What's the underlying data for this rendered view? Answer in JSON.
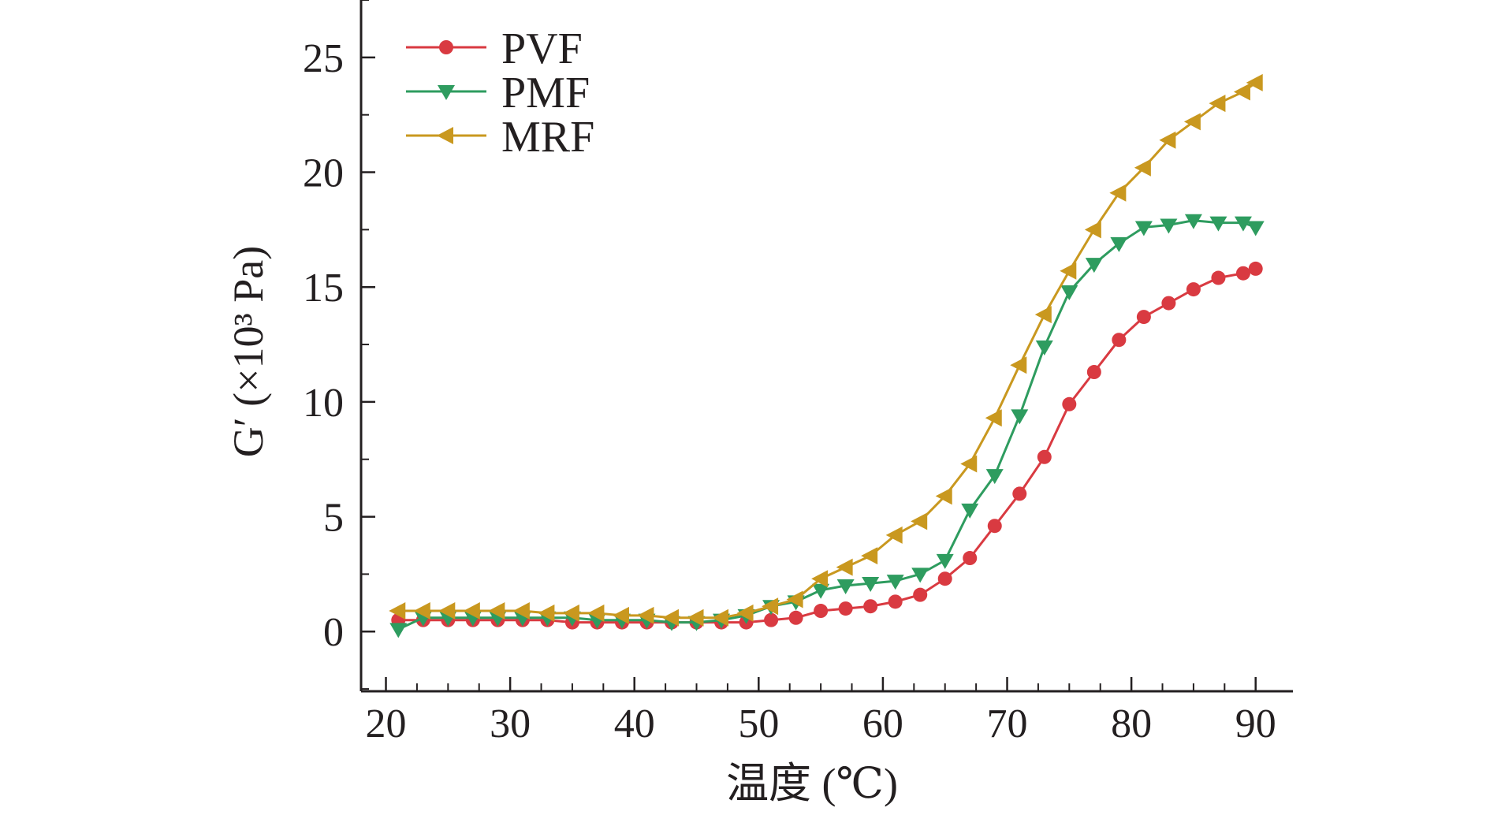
{
  "chart_data": {
    "type": "line",
    "title": "",
    "xlabel": "温度 (℃)",
    "ylabel": "G′ (×10³ Pa)",
    "xlim": [
      18,
      93
    ],
    "ylim": [
      -2.6,
      27.5
    ],
    "x_ticks": [
      20,
      30,
      40,
      50,
      60,
      70,
      80,
      90
    ],
    "y_ticks": [
      0,
      5,
      10,
      15,
      20,
      25
    ],
    "x_minor_step": 2.5,
    "y_minor_step": 2.5,
    "legend_position": "top-left",
    "x": [
      21,
      23,
      25,
      27,
      29,
      31,
      33,
      35,
      37,
      39,
      41,
      43,
      45,
      47,
      49,
      51,
      53,
      55,
      57,
      59,
      61,
      63,
      65,
      67,
      69,
      71,
      73,
      75,
      77,
      79,
      81,
      83,
      85,
      87,
      89,
      90
    ],
    "series": [
      {
        "name": "PVF",
        "color": "#d93a41",
        "marker": "circle",
        "values": [
          0.5,
          0.5,
          0.5,
          0.5,
          0.5,
          0.5,
          0.5,
          0.4,
          0.4,
          0.4,
          0.4,
          0.4,
          0.4,
          0.4,
          0.4,
          0.5,
          0.6,
          0.9,
          1.0,
          1.1,
          1.3,
          1.6,
          2.3,
          3.2,
          4.6,
          6.0,
          7.6,
          9.9,
          11.3,
          12.7,
          13.7,
          14.3,
          14.9,
          15.4,
          15.6,
          15.8
        ]
      },
      {
        "name": "PMF",
        "color": "#2e9c5f",
        "marker": "triangle-down",
        "values": [
          0.1,
          0.6,
          0.6,
          0.6,
          0.6,
          0.6,
          0.6,
          0.6,
          0.5,
          0.5,
          0.5,
          0.4,
          0.4,
          0.5,
          0.7,
          1.1,
          1.3,
          1.8,
          2.0,
          2.1,
          2.2,
          2.5,
          3.1,
          5.3,
          6.8,
          9.4,
          12.4,
          14.8,
          16.0,
          16.9,
          17.6,
          17.7,
          17.9,
          17.8,
          17.8,
          17.6
        ]
      },
      {
        "name": "MRF",
        "color": "#c9981f",
        "marker": "triangle-left",
        "values": [
          0.9,
          0.9,
          0.9,
          0.9,
          0.9,
          0.9,
          0.8,
          0.8,
          0.8,
          0.7,
          0.7,
          0.6,
          0.6,
          0.6,
          0.8,
          1.1,
          1.4,
          2.3,
          2.8,
          3.3,
          4.2,
          4.8,
          5.9,
          7.3,
          9.3,
          11.6,
          13.8,
          15.7,
          17.5,
          19.1,
          20.2,
          21.4,
          22.2,
          23.0,
          23.5,
          23.9
        ]
      }
    ]
  }
}
